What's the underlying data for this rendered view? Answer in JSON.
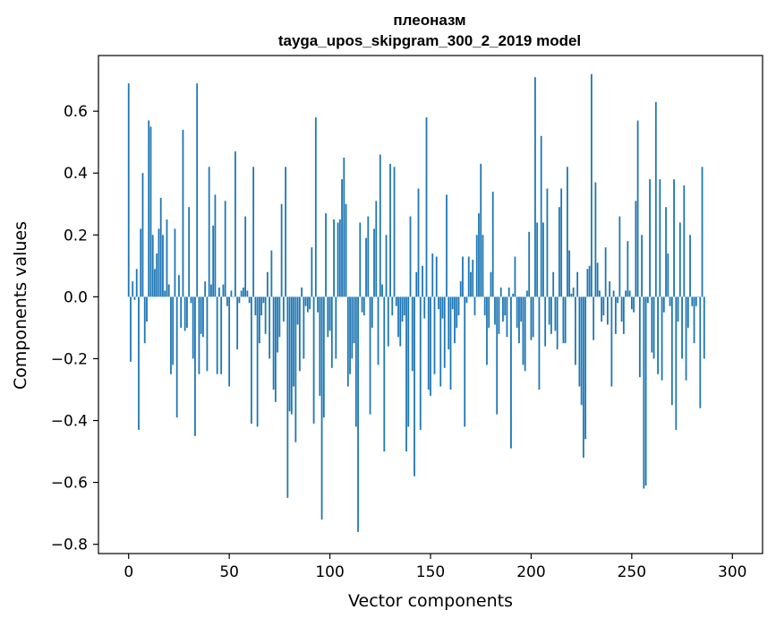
{
  "chart_data": {
    "type": "bar",
    "title": "плеоназм",
    "subtitle": "tayga_upos_skipgram_300_2_2019 model",
    "xlabel": "Vector components",
    "ylabel": "Components values",
    "xlim": [
      -15,
      315
    ],
    "ylim": [
      -0.83,
      0.78
    ],
    "xticks": [
      0,
      50,
      100,
      150,
      200,
      250,
      300
    ],
    "xtick_labels": [
      "0",
      "50",
      "100",
      "150",
      "200",
      "250",
      "300"
    ],
    "yticks": [
      -0.8,
      -0.6,
      -0.4,
      -0.2,
      0.0,
      0.2,
      0.4,
      0.6
    ],
    "ytick_labels": [
      "−0.8",
      "−0.6",
      "−0.4",
      "−0.2",
      "0.0",
      "0.2",
      "0.4",
      "0.6"
    ],
    "grid": false,
    "bar_color": "#1f77b4",
    "series": [
      {
        "values": [
          0.69,
          -0.21,
          0.05,
          -0.01,
          0.09,
          -0.43,
          0.22,
          0.4,
          -0.15,
          -0.08,
          0.57,
          0.55,
          0.2,
          0.09,
          0.14,
          0.22,
          0.32,
          0.2,
          0.02,
          0.25,
          0.04,
          -0.25,
          -0.22,
          0.22,
          -0.39,
          0.07,
          -0.1,
          0.54,
          -0.11,
          -0.1,
          0.29,
          -0.02,
          -0.2,
          -0.45,
          0.69,
          -0.25,
          -0.12,
          -0.13,
          0.05,
          -0.24,
          0.42,
          0.04,
          0.23,
          0.33,
          -0.25,
          0.03,
          -0.25,
          0.04,
          0.31,
          -0.03,
          -0.29,
          0.02,
          0.0,
          0.47,
          -0.17,
          -0.02,
          0.02,
          0.03,
          0.26,
          0.02,
          -0.02,
          -0.41,
          0.42,
          -0.06,
          -0.42,
          -0.15,
          -0.06,
          -0.02,
          -0.12,
          0.08,
          -0.2,
          0.15,
          -0.3,
          -0.34,
          -0.18,
          -0.13,
          0.3,
          -0.08,
          0.42,
          -0.65,
          -0.37,
          -0.38,
          -0.29,
          -0.47,
          -0.09,
          -0.24,
          0.03,
          -0.2,
          -0.03,
          -0.05,
          -0.04,
          0.16,
          -0.41,
          0.58,
          -0.05,
          -0.32,
          -0.72,
          -0.39,
          0.27,
          -0.13,
          -0.11,
          -0.23,
          0.25,
          -0.2,
          0.24,
          0.25,
          0.38,
          0.45,
          0.3,
          -0.29,
          -0.25,
          -0.2,
          -0.15,
          -0.42,
          -0.76,
          0.24,
          -0.05,
          -0.06,
          0.19,
          0.26,
          -0.38,
          -0.1,
          0.22,
          0.31,
          -0.22,
          0.46,
          0.04,
          -0.5,
          0.2,
          -0.16,
          0.43,
          -0.06,
          0.42,
          -0.03,
          -0.13,
          -0.16,
          -0.08,
          -0.06,
          -0.5,
          -0.42,
          0.26,
          -0.24,
          -0.58,
          0.08,
          0.35,
          -0.43,
          0.1,
          -0.07,
          0.58,
          -0.3,
          -0.32,
          0.14,
          -0.25,
          0.13,
          -0.04,
          -0.29,
          -0.07,
          -0.23,
          0.33,
          -0.17,
          -0.3,
          -0.04,
          -0.15,
          -0.1,
          -0.06,
          0.05,
          0.13,
          -0.42,
          -0.02,
          0.13,
          0.08,
          0.12,
          -0.06,
          0.2,
          0.27,
          0.43,
          0.2,
          -0.06,
          -0.22,
          -0.1,
          0.08,
          0.34,
          -0.09,
          -0.38,
          -0.12,
          0.03,
          -0.08,
          -0.06,
          -0.13,
          0.03,
          -0.49,
          0.01,
          0.13,
          -0.1,
          -0.15,
          -0.08,
          -0.22,
          -0.24,
          0.02,
          0.21,
          -0.14,
          -0.13,
          0.71,
          0.24,
          -0.3,
          0.52,
          0.24,
          -0.16,
          0.35,
          -0.09,
          -0.12,
          0.08,
          -0.11,
          -0.17,
          0.29,
          0.35,
          -0.15,
          -0.15,
          0.42,
          0.15,
          0.01,
          0.03,
          -0.22,
          0.08,
          -0.29,
          -0.35,
          -0.52,
          -0.46,
          0.09,
          0.1,
          0.72,
          -0.14,
          0.37,
          0.11,
          0.02,
          -0.08,
          -0.06,
          0.16,
          -0.09,
          0.05,
          -0.29,
          0.02,
          -0.12,
          -0.02,
          0.26,
          -0.08,
          -0.12,
          0.02,
          0.18,
          0.02,
          -0.04,
          -0.05,
          0.31,
          0.57,
          -0.26,
          0.2,
          -0.62,
          -0.61,
          -0.02,
          0.38,
          -0.18,
          -0.2,
          0.63,
          -0.25,
          0.38,
          -0.27,
          -0.05,
          0.29,
          0.14,
          -0.03,
          -0.35,
          0.38,
          -0.43,
          -0.08,
          0.24,
          -0.2,
          0.36,
          -0.27,
          -0.1,
          0.2,
          -0.03,
          -0.15,
          -0.03,
          0.0,
          -0.36,
          0.42,
          -0.2
        ]
      }
    ]
  }
}
